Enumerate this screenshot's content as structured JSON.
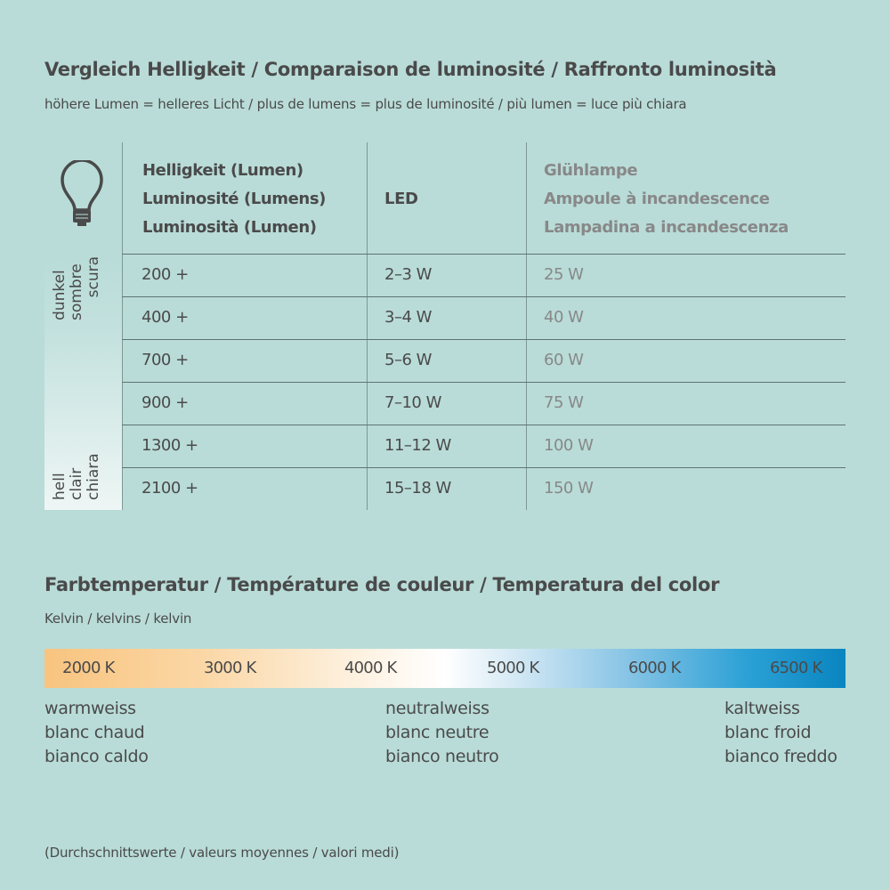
{
  "brightness": {
    "title": "Vergleich Helligkeit / Comparaison de luminosité / Raffronto luminosità",
    "subtitle": "höhere Lumen = helleres Licht / plus de lumens = plus de luminosité / più lumen = luce più chiara",
    "icon": "light-bulb-icon",
    "headers": {
      "lumen": [
        "Helligkeit (Lumen)",
        "Luminosité (Lumens)",
        "Luminosità (Lumen)"
      ],
      "led": "LED",
      "incandescent": [
        "Glühlampe",
        "Ampoule à incandescence",
        "Lampadina a incandescenza"
      ]
    },
    "scale": {
      "dark": [
        "dunkel",
        "sombre",
        "scura"
      ],
      "bright": [
        "hell",
        "clair",
        "chiara"
      ]
    },
    "rows": [
      {
        "lumen": "200 +",
        "led": "2–3 W",
        "incandescent": "25 W"
      },
      {
        "lumen": "400 +",
        "led": "3–4 W",
        "incandescent": "40 W"
      },
      {
        "lumen": "700 +",
        "led": "5–6 W",
        "incandescent": "60 W"
      },
      {
        "lumen": "900 +",
        "led": "7–10 W",
        "incandescent": "75 W"
      },
      {
        "lumen": "1300 +",
        "led": "11–12 W",
        "incandescent": "100 W"
      },
      {
        "lumen": "2100 +",
        "led": "15–18 W",
        "incandescent": "150 W"
      }
    ]
  },
  "color_temperature": {
    "title": "Farbtemperatur / Température de couleur / Temperatura del color",
    "subtitle": "Kelvin / kelvins / kelvin",
    "ticks": [
      "2000 K",
      "3000 K",
      "4000 K",
      "5000 K",
      "6000 K",
      "6500 K"
    ],
    "gradient_colors": [
      "#f8c47f",
      "#ffffff",
      "#0a85c0"
    ],
    "labels": {
      "warm": [
        "warmweiss",
        "blanc chaud",
        "bianco caldo"
      ],
      "neutral": [
        "neutralweiss",
        "blanc neutre",
        "bianco neutro"
      ],
      "cold": [
        "kaltweiss",
        "blanc froid",
        "bianco freddo"
      ]
    }
  },
  "footnote": "(Durchschnittswerte / valeurs moyennes / valori medi)"
}
